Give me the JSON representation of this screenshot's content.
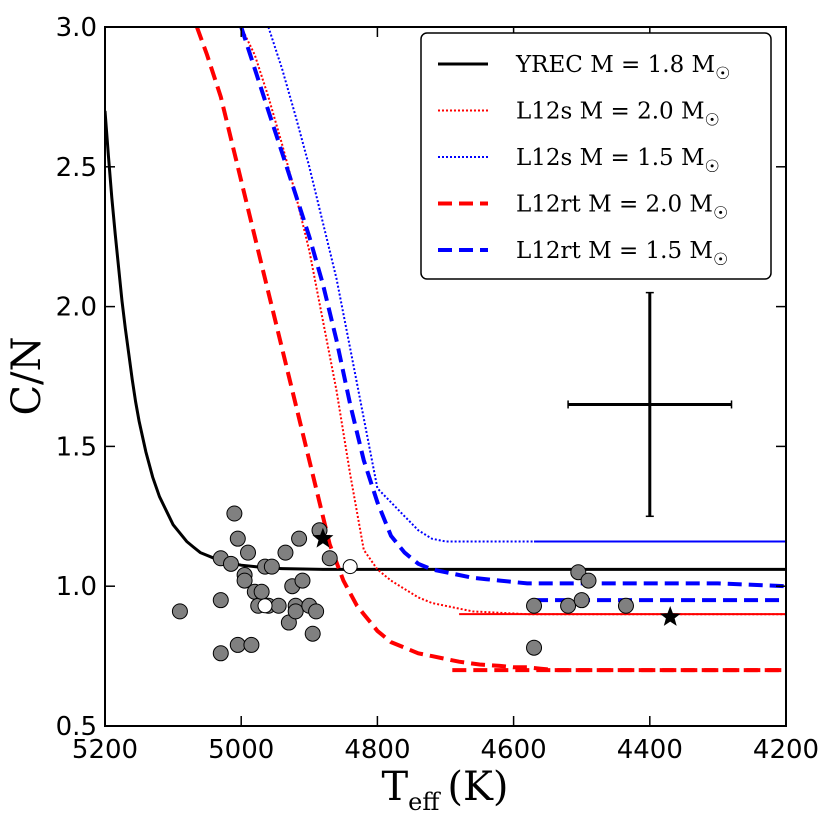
{
  "chart_data": {
    "type": "scatter",
    "xlabel": "T",
    "xlabel_sub": "eff",
    "xlabel_unit": "(K)",
    "ylabel": "C/N",
    "xlim": [
      5200,
      4200
    ],
    "ylim": [
      0.5,
      3.0
    ],
    "x_ticks": [
      {
        "value": 5200,
        "label": "5200"
      },
      {
        "value": 5000,
        "label": "5000"
      },
      {
        "value": 4800,
        "label": "4800"
      },
      {
        "value": 4600,
        "label": "4600"
      },
      {
        "value": 4400,
        "label": "4400"
      },
      {
        "value": 4200,
        "label": "4200"
      }
    ],
    "y_ticks": [
      {
        "value": 0.5,
        "label": "0.5"
      },
      {
        "value": 1.0,
        "label": "1.0"
      },
      {
        "value": 1.5,
        "label": "1.5"
      },
      {
        "value": 2.0,
        "label": "2.0"
      },
      {
        "value": 2.5,
        "label": "2.5"
      },
      {
        "value": 3.0,
        "label": "3.0"
      }
    ],
    "legend_position": "top-right",
    "series": [
      {
        "name": "YREC M = 1.8 M☉",
        "label_main": "YREC M = 1.8 M",
        "color": "#000000",
        "style": "solid",
        "width": 3,
        "x": [
          5200,
          5195,
          5190,
          5185,
          5180,
          5175,
          5170,
          5165,
          5160,
          5155,
          5150,
          5140,
          5130,
          5120,
          5110,
          5100,
          5090,
          5080,
          5070,
          5060,
          5050,
          5040,
          5030,
          5020,
          5010,
          5000,
          4980,
          4960,
          4940,
          4920,
          4900,
          4880,
          4860,
          4840,
          4800,
          4700,
          4600,
          4500,
          4400,
          4300,
          4200
        ],
        "y": [
          2.7,
          2.54,
          2.39,
          2.26,
          2.14,
          2.02,
          1.92,
          1.83,
          1.74,
          1.66,
          1.59,
          1.48,
          1.39,
          1.32,
          1.27,
          1.22,
          1.19,
          1.16,
          1.14,
          1.12,
          1.11,
          1.1,
          1.09,
          1.085,
          1.08,
          1.075,
          1.07,
          1.065,
          1.063,
          1.062,
          1.061,
          1.06,
          1.06,
          1.06,
          1.06,
          1.06,
          1.06,
          1.06,
          1.06,
          1.06,
          1.06
        ]
      },
      {
        "name": "L12s M = 2.0 M☉",
        "label_main": "L12s M = 2.0 M",
        "color": "#ff0000",
        "style": "dotted",
        "width": 2,
        "x": [
          5000,
          4980,
          4960,
          4940,
          4920,
          4900,
          4880,
          4860,
          4840,
          4820,
          4800,
          4780,
          4760,
          4740,
          4720,
          4700,
          4680,
          4660,
          4620,
          4580,
          4520,
          4480,
          4400,
          4300,
          4200
        ],
        "y": [
          3.0,
          2.9,
          2.75,
          2.58,
          2.4,
          2.2,
          1.95,
          1.7,
          1.4,
          1.13,
          1.06,
          1.02,
          0.99,
          0.96,
          0.94,
          0.93,
          0.92,
          0.91,
          0.905,
          0.9,
          0.9,
          0.9,
          0.9,
          0.9,
          0.9
        ]
      },
      {
        "name": "L12s M = 1.5 M☉",
        "label_main": "L12s M = 1.5 M",
        "color": "#0000ff",
        "style": "dotted",
        "width": 2,
        "x": [
          4960,
          4940,
          4920,
          4900,
          4880,
          4860,
          4840,
          4820,
          4800,
          4780,
          4760,
          4740,
          4720,
          4700,
          4680,
          4660,
          4640,
          4600,
          4580,
          4560,
          4500,
          4400,
          4300,
          4200
        ],
        "y": [
          3.0,
          2.85,
          2.68,
          2.5,
          2.3,
          2.1,
          1.85,
          1.6,
          1.35,
          1.3,
          1.25,
          1.2,
          1.17,
          1.16,
          1.16,
          1.16,
          1.16,
          1.16,
          1.16,
          1.16,
          1.16,
          1.16,
          1.16,
          1.16
        ]
      },
      {
        "name": "L12rt M = 2.0 M☉",
        "label_main": "L12rt M = 2.0 M",
        "color": "#ff0000",
        "style": "dashed",
        "width": 4,
        "x": [
          5065,
          5050,
          5030,
          5010,
          4990,
          4970,
          4950,
          4930,
          4910,
          4890,
          4870,
          4850,
          4830,
          4820,
          4810,
          4800,
          4790,
          4780,
          4760,
          4740,
          4720,
          4700,
          4680,
          4650,
          4620,
          4600,
          4580,
          4560,
          4540,
          4500,
          4400,
          4300,
          4200
        ],
        "y": [
          3.0,
          2.9,
          2.75,
          2.55,
          2.35,
          2.15,
          1.95,
          1.75,
          1.55,
          1.35,
          1.15,
          1.02,
          0.93,
          0.9,
          0.87,
          0.84,
          0.82,
          0.8,
          0.78,
          0.76,
          0.75,
          0.74,
          0.73,
          0.72,
          0.715,
          0.71,
          0.71,
          0.705,
          0.7,
          0.7,
          0.7,
          0.7,
          0.7
        ]
      },
      {
        "name": "L12rt M = 1.5 M☉",
        "label_main": "L12rt M = 1.5 M",
        "color": "#0000ff",
        "style": "dashed",
        "width": 4,
        "x": [
          5000,
          4980,
          4960,
          4940,
          4920,
          4900,
          4880,
          4860,
          4840,
          4820,
          4800,
          4780,
          4760,
          4740,
          4720,
          4700,
          4680,
          4660,
          4640,
          4620,
          4600,
          4580,
          4560,
          4500,
          4400,
          4300,
          4200
        ],
        "y": [
          3.0,
          2.85,
          2.7,
          2.55,
          2.4,
          2.25,
          2.08,
          1.88,
          1.65,
          1.45,
          1.3,
          1.18,
          1.12,
          1.08,
          1.06,
          1.05,
          1.04,
          1.03,
          1.025,
          1.02,
          1.015,
          1.01,
          1.01,
          1.01,
          1.01,
          1.01,
          1.0
        ]
      }
    ],
    "plateau_segments": [
      {
        "color": "#0000ff",
        "style": "solid",
        "x": [
          4570,
          4200
        ],
        "y": [
          1.16,
          1.16
        ],
        "width": 2
      },
      {
        "color": "#ff0000",
        "style": "solid",
        "x": [
          4680,
          4200
        ],
        "y": [
          0.9,
          0.9
        ],
        "width": 2
      },
      {
        "color": "#0000ff",
        "style": "dashed",
        "x": [
          4570,
          4200
        ],
        "y": [
          0.95,
          0.95
        ],
        "width": 4
      },
      {
        "color": "#ff0000",
        "style": "dashed",
        "x": [
          4690,
          4200
        ],
        "y": [
          0.7,
          0.7
        ],
        "width": 4
      }
    ],
    "gray_points": [
      [
        5090,
        0.91
      ],
      [
        5030,
        1.1
      ],
      [
        5030,
        0.95
      ],
      [
        5030,
        0.76
      ],
      [
        5015,
        1.08
      ],
      [
        5010,
        1.26
      ],
      [
        5005,
        1.17
      ],
      [
        5005,
        0.79
      ],
      [
        4995,
        1.04
      ],
      [
        4995,
        1.02
      ],
      [
        4990,
        1.12
      ],
      [
        4985,
        0.79
      ],
      [
        4980,
        0.98
      ],
      [
        4975,
        0.93
      ],
      [
        4970,
        0.98
      ],
      [
        4965,
        1.07
      ],
      [
        4960,
        0.93
      ],
      [
        4955,
        1.07
      ],
      [
        4945,
        0.93
      ],
      [
        4935,
        1.12
      ],
      [
        4930,
        0.87
      ],
      [
        4925,
        1.0
      ],
      [
        4920,
        0.93
      ],
      [
        4920,
        0.91
      ],
      [
        4915,
        1.17
      ],
      [
        4910,
        1.02
      ],
      [
        4900,
        0.93
      ],
      [
        4895,
        0.83
      ],
      [
        4890,
        0.91
      ],
      [
        4885,
        1.2
      ],
      [
        4870,
        1.1
      ],
      [
        4570,
        0.93
      ],
      [
        4570,
        0.78
      ],
      [
        4520,
        0.93
      ],
      [
        4505,
        1.05
      ],
      [
        4500,
        0.95
      ],
      [
        4490,
        1.02
      ],
      [
        4435,
        0.93
      ]
    ],
    "open_points": [
      [
        4965,
        0.93
      ],
      [
        4840,
        1.07
      ]
    ],
    "star_points": [
      [
        4880,
        1.17
      ],
      [
        4370,
        0.89
      ]
    ],
    "error_bar": {
      "x": 4400,
      "y": 1.65,
      "xerr": 120,
      "yerr": 0.4
    }
  }
}
